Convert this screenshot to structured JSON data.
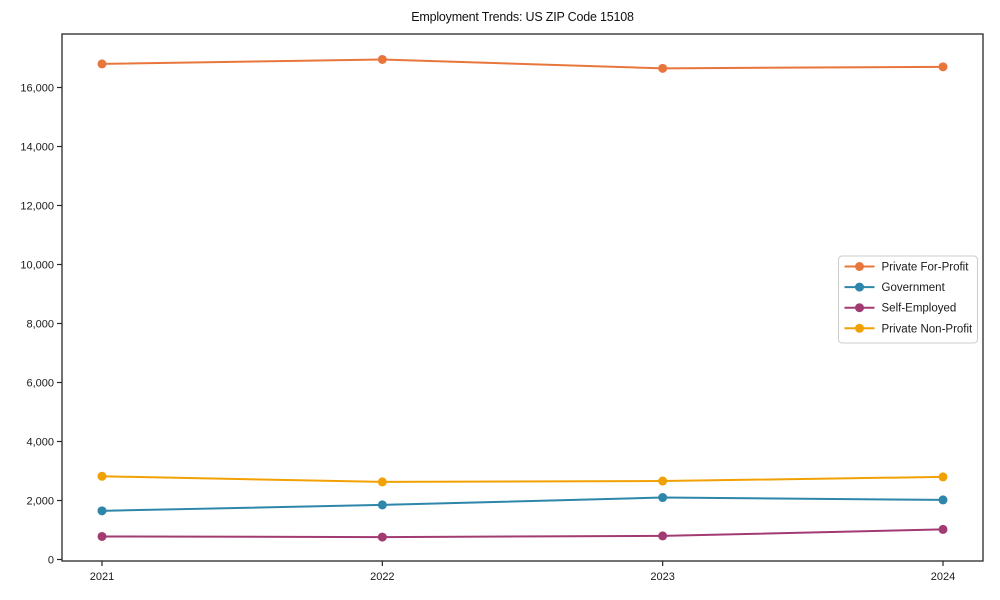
{
  "chart_data": {
    "type": "line",
    "title": "Employment Trends: US ZIP Code 15108",
    "x": [
      2021,
      2022,
      2023,
      2024
    ],
    "x_tick_labels": [
      "2021",
      "2022",
      "2023",
      "2024"
    ],
    "series": [
      {
        "name": "Private For-Profit",
        "color": "#E8763C",
        "values": [
          16800,
          16950,
          16650,
          16700
        ]
      },
      {
        "name": "Government",
        "color": "#2E86AB",
        "values": [
          1650,
          1850,
          2100,
          2020
        ]
      },
      {
        "name": "Self-Employed",
        "color": "#A23B72",
        "values": [
          780,
          760,
          800,
          1020
        ]
      },
      {
        "name": "Private Non-Profit",
        "color": "#F2A104",
        "values": [
          2820,
          2630,
          2660,
          2800
        ]
      }
    ],
    "xlabel": "",
    "ylabel": "",
    "ylim": [
      0,
      17800
    ],
    "yticks": [
      0,
      2000,
      4000,
      6000,
      8000,
      10000,
      12000,
      14000,
      16000
    ],
    "ytick_labels": [
      "0",
      "2,000",
      "4,000",
      "6,000",
      "8,000",
      "10,000",
      "12,000",
      "14,000",
      "16,000"
    ],
    "grid": false,
    "marker": "circle",
    "legend_position": "center-right"
  },
  "style": {
    "axis_color": "#262626",
    "tick_label_color": "#1a1a1a",
    "legend_border_color": "#cccccc",
    "legend_background": "#ffffff",
    "background": "#ffffff"
  }
}
